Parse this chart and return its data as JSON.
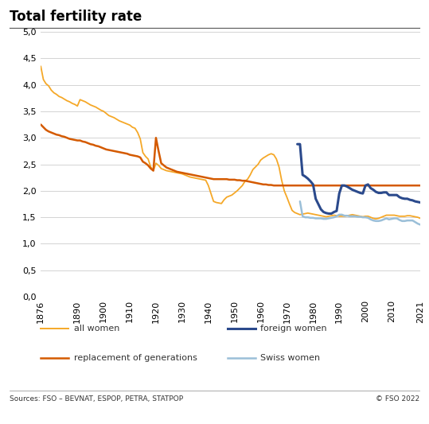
{
  "title": "Total fertility rate",
  "footer_left": "Sources: FSO – BEVNAT, ESPOP, PETRA, STATPOP",
  "footer_right": "© FSO 2022",
  "ylim": [
    0.0,
    5.0
  ],
  "yticks": [
    0.0,
    0.5,
    1.0,
    1.5,
    2.0,
    2.5,
    3.0,
    3.5,
    4.0,
    4.5,
    5.0
  ],
  "xticks": [
    1876,
    1890,
    1900,
    1910,
    1920,
    1930,
    1940,
    1950,
    1960,
    1970,
    1980,
    1990,
    2000,
    2010,
    2021
  ],
  "colors": {
    "all_women": "#F5A828",
    "replacement": "#D45A00",
    "foreign_women": "#2B4A8C",
    "swiss_women": "#9BBFD8"
  },
  "all_women": {
    "years": [
      1876,
      1877,
      1878,
      1879,
      1880,
      1881,
      1882,
      1883,
      1884,
      1885,
      1886,
      1887,
      1888,
      1889,
      1890,
      1891,
      1892,
      1893,
      1894,
      1895,
      1896,
      1897,
      1898,
      1899,
      1900,
      1901,
      1902,
      1903,
      1904,
      1905,
      1906,
      1907,
      1908,
      1909,
      1910,
      1911,
      1912,
      1913,
      1914,
      1915,
      1916,
      1917,
      1918,
      1919,
      1920,
      1921,
      1922,
      1923,
      1924,
      1925,
      1926,
      1927,
      1928,
      1929,
      1930,
      1931,
      1932,
      1933,
      1934,
      1935,
      1936,
      1937,
      1938,
      1939,
      1940,
      1941,
      1942,
      1943,
      1944,
      1945,
      1946,
      1947,
      1948,
      1949,
      1950,
      1951,
      1952,
      1953,
      1954,
      1955,
      1956,
      1957,
      1958,
      1959,
      1960,
      1961,
      1962,
      1963,
      1964,
      1965,
      1966,
      1967,
      1968,
      1969,
      1970,
      1971,
      1972,
      1973,
      1974,
      1975,
      1976,
      1977,
      1978,
      1979,
      1980,
      1981,
      1982,
      1983,
      1984,
      1985,
      1986,
      1987,
      1988,
      1989,
      1990,
      1991,
      1992,
      1993,
      1994,
      1995,
      1996,
      1997,
      1998,
      1999,
      2000,
      2001,
      2002,
      2003,
      2004,
      2005,
      2006,
      2007,
      2008,
      2009,
      2010,
      2011,
      2012,
      2013,
      2014,
      2015,
      2016,
      2017,
      2018,
      2019,
      2020,
      2021
    ],
    "values": [
      4.35,
      4.1,
      4.02,
      3.98,
      3.9,
      3.85,
      3.82,
      3.78,
      3.76,
      3.73,
      3.7,
      3.68,
      3.65,
      3.63,
      3.6,
      3.72,
      3.7,
      3.68,
      3.65,
      3.62,
      3.6,
      3.58,
      3.55,
      3.52,
      3.5,
      3.46,
      3.42,
      3.4,
      3.38,
      3.35,
      3.32,
      3.3,
      3.28,
      3.26,
      3.24,
      3.2,
      3.18,
      3.1,
      2.98,
      2.72,
      2.65,
      2.6,
      2.45,
      2.38,
      2.52,
      2.48,
      2.42,
      2.4,
      2.38,
      2.37,
      2.36,
      2.35,
      2.34,
      2.33,
      2.32,
      2.3,
      2.28,
      2.26,
      2.25,
      2.24,
      2.23,
      2.22,
      2.21,
      2.2,
      2.1,
      1.95,
      1.8,
      1.78,
      1.77,
      1.76,
      1.83,
      1.88,
      1.9,
      1.92,
      1.96,
      2.0,
      2.05,
      2.1,
      2.18,
      2.22,
      2.3,
      2.4,
      2.45,
      2.5,
      2.58,
      2.62,
      2.65,
      2.68,
      2.7,
      2.68,
      2.6,
      2.45,
      2.2,
      2.0,
      1.88,
      1.75,
      1.63,
      1.59,
      1.57,
      1.55,
      1.56,
      1.57,
      1.58,
      1.57,
      1.56,
      1.55,
      1.54,
      1.53,
      1.52,
      1.51,
      1.52,
      1.53,
      1.54,
      1.53,
      1.52,
      1.52,
      1.52,
      1.53,
      1.54,
      1.55,
      1.54,
      1.53,
      1.52,
      1.51,
      1.52,
      1.52,
      1.5,
      1.48,
      1.47,
      1.48,
      1.5,
      1.52,
      1.54,
      1.54,
      1.54,
      1.54,
      1.53,
      1.52,
      1.52,
      1.52,
      1.53,
      1.53,
      1.52,
      1.51,
      1.5,
      1.48
    ]
  },
  "replacement": {
    "years": [
      1876,
      1877,
      1878,
      1879,
      1880,
      1881,
      1882,
      1883,
      1884,
      1885,
      1886,
      1887,
      1888,
      1889,
      1890,
      1891,
      1892,
      1893,
      1894,
      1895,
      1896,
      1897,
      1898,
      1899,
      1900,
      1901,
      1902,
      1903,
      1904,
      1905,
      1906,
      1907,
      1908,
      1909,
      1910,
      1911,
      1912,
      1913,
      1914,
      1915,
      1916,
      1917,
      1918,
      1919,
      1920,
      1921,
      1922,
      1923,
      1924,
      1925,
      1926,
      1927,
      1928,
      1929,
      1930,
      1931,
      1932,
      1933,
      1934,
      1935,
      1936,
      1937,
      1938,
      1939,
      1940,
      1941,
      1942,
      1943,
      1944,
      1945,
      1946,
      1947,
      1948,
      1949,
      1950,
      1951,
      1952,
      1953,
      1954,
      1955,
      1956,
      1957,
      1958,
      1959,
      1960,
      1961,
      1962,
      1963,
      1964,
      1965,
      1966,
      1967,
      1968,
      1969,
      1970,
      1971,
      1972,
      1973,
      1974,
      1975,
      1976,
      1977,
      1978,
      1979,
      1980,
      1981,
      1982,
      1983,
      1984,
      1985,
      1986,
      1987,
      1988,
      1989,
      1990,
      1991,
      1992,
      1993,
      1994,
      1995,
      1996,
      1997,
      1998,
      1999,
      2000,
      2001,
      2002,
      2003,
      2004,
      2005,
      2006,
      2007,
      2008,
      2009,
      2010,
      2011,
      2012,
      2013,
      2014,
      2015,
      2016,
      2017,
      2018,
      2019,
      2020,
      2021
    ],
    "values": [
      3.25,
      3.2,
      3.15,
      3.12,
      3.1,
      3.08,
      3.06,
      3.05,
      3.03,
      3.02,
      3.0,
      2.98,
      2.97,
      2.96,
      2.95,
      2.95,
      2.93,
      2.92,
      2.9,
      2.88,
      2.87,
      2.85,
      2.84,
      2.82,
      2.8,
      2.78,
      2.77,
      2.76,
      2.75,
      2.74,
      2.73,
      2.72,
      2.71,
      2.7,
      2.68,
      2.67,
      2.66,
      2.65,
      2.63,
      2.55,
      2.52,
      2.48,
      2.42,
      2.38,
      3.0,
      2.75,
      2.52,
      2.48,
      2.44,
      2.42,
      2.4,
      2.38,
      2.36,
      2.35,
      2.34,
      2.33,
      2.32,
      2.31,
      2.3,
      2.29,
      2.28,
      2.27,
      2.26,
      2.25,
      2.24,
      2.23,
      2.22,
      2.22,
      2.22,
      2.22,
      2.22,
      2.22,
      2.21,
      2.21,
      2.21,
      2.2,
      2.2,
      2.19,
      2.19,
      2.18,
      2.17,
      2.16,
      2.15,
      2.14,
      2.13,
      2.12,
      2.12,
      2.11,
      2.11,
      2.1,
      2.1,
      2.1,
      2.1,
      2.1,
      2.1,
      2.1,
      2.1,
      2.1,
      2.1,
      2.1,
      2.1,
      2.1,
      2.1,
      2.1,
      2.1,
      2.1,
      2.1,
      2.1,
      2.1,
      2.1,
      2.1,
      2.1,
      2.1,
      2.1,
      2.1,
      2.1,
      2.1,
      2.1,
      2.1,
      2.1,
      2.1,
      2.1,
      2.1,
      2.1,
      2.1,
      2.1,
      2.1,
      2.1,
      2.1,
      2.1,
      2.1,
      2.1,
      2.1,
      2.1,
      2.1,
      2.1,
      2.1,
      2.1,
      2.1,
      2.1,
      2.1,
      2.1,
      2.1,
      2.1,
      2.1,
      2.1
    ]
  },
  "foreign_women": {
    "years": [
      1974,
      1975,
      1976,
      1977,
      1978,
      1979,
      1980,
      1981,
      1982,
      1983,
      1984,
      1985,
      1986,
      1987,
      1988,
      1989,
      1990,
      1991,
      1992,
      1993,
      1994,
      1995,
      1996,
      1997,
      1998,
      1999,
      2000,
      2001,
      2002,
      2003,
      2004,
      2005,
      2006,
      2007,
      2008,
      2009,
      2010,
      2011,
      2012,
      2013,
      2014,
      2015,
      2016,
      2017,
      2018,
      2019,
      2020,
      2021
    ],
    "values": [
      2.88,
      2.88,
      2.3,
      2.27,
      2.23,
      2.18,
      2.12,
      1.85,
      1.75,
      1.65,
      1.6,
      1.58,
      1.57,
      1.57,
      1.6,
      1.62,
      1.95,
      2.1,
      2.1,
      2.08,
      2.05,
      2.02,
      2.0,
      1.98,
      1.96,
      1.95,
      2.1,
      2.12,
      2.05,
      2.02,
      1.98,
      1.96,
      1.96,
      1.97,
      1.97,
      1.92,
      1.92,
      1.92,
      1.92,
      1.88,
      1.86,
      1.85,
      1.85,
      1.83,
      1.82,
      1.8,
      1.79,
      1.78
    ]
  },
  "swiss_women": {
    "years": [
      1975,
      1976,
      1977,
      1978,
      1979,
      1980,
      1981,
      1982,
      1983,
      1984,
      1985,
      1986,
      1987,
      1988,
      1989,
      1990,
      1991,
      1992,
      1993,
      1994,
      1995,
      1996,
      1997,
      1998,
      1999,
      2000,
      2001,
      2002,
      2003,
      2004,
      2005,
      2006,
      2007,
      2008,
      2009,
      2010,
      2011,
      2012,
      2013,
      2014,
      2015,
      2016,
      2017,
      2018,
      2019,
      2020,
      2021
    ],
    "values": [
      1.8,
      1.52,
      1.5,
      1.5,
      1.49,
      1.49,
      1.48,
      1.48,
      1.48,
      1.47,
      1.47,
      1.48,
      1.49,
      1.5,
      1.52,
      1.55,
      1.55,
      1.53,
      1.53,
      1.52,
      1.52,
      1.52,
      1.51,
      1.51,
      1.5,
      1.5,
      1.49,
      1.46,
      1.44,
      1.43,
      1.43,
      1.44,
      1.46,
      1.48,
      1.46,
      1.47,
      1.48,
      1.48,
      1.45,
      1.43,
      1.43,
      1.44,
      1.44,
      1.44,
      1.41,
      1.38,
      1.36
    ]
  },
  "legend_items": [
    {
      "label": "all women",
      "color": "#F5A828",
      "lw": 1.4
    },
    {
      "label": "replacement of generations",
      "color": "#D45A00",
      "lw": 1.8
    },
    {
      "label": "foreign women",
      "color": "#2B4A8C",
      "lw": 2.2
    },
    {
      "label": "Swiss women",
      "color": "#9BBFD8",
      "lw": 1.8
    }
  ]
}
